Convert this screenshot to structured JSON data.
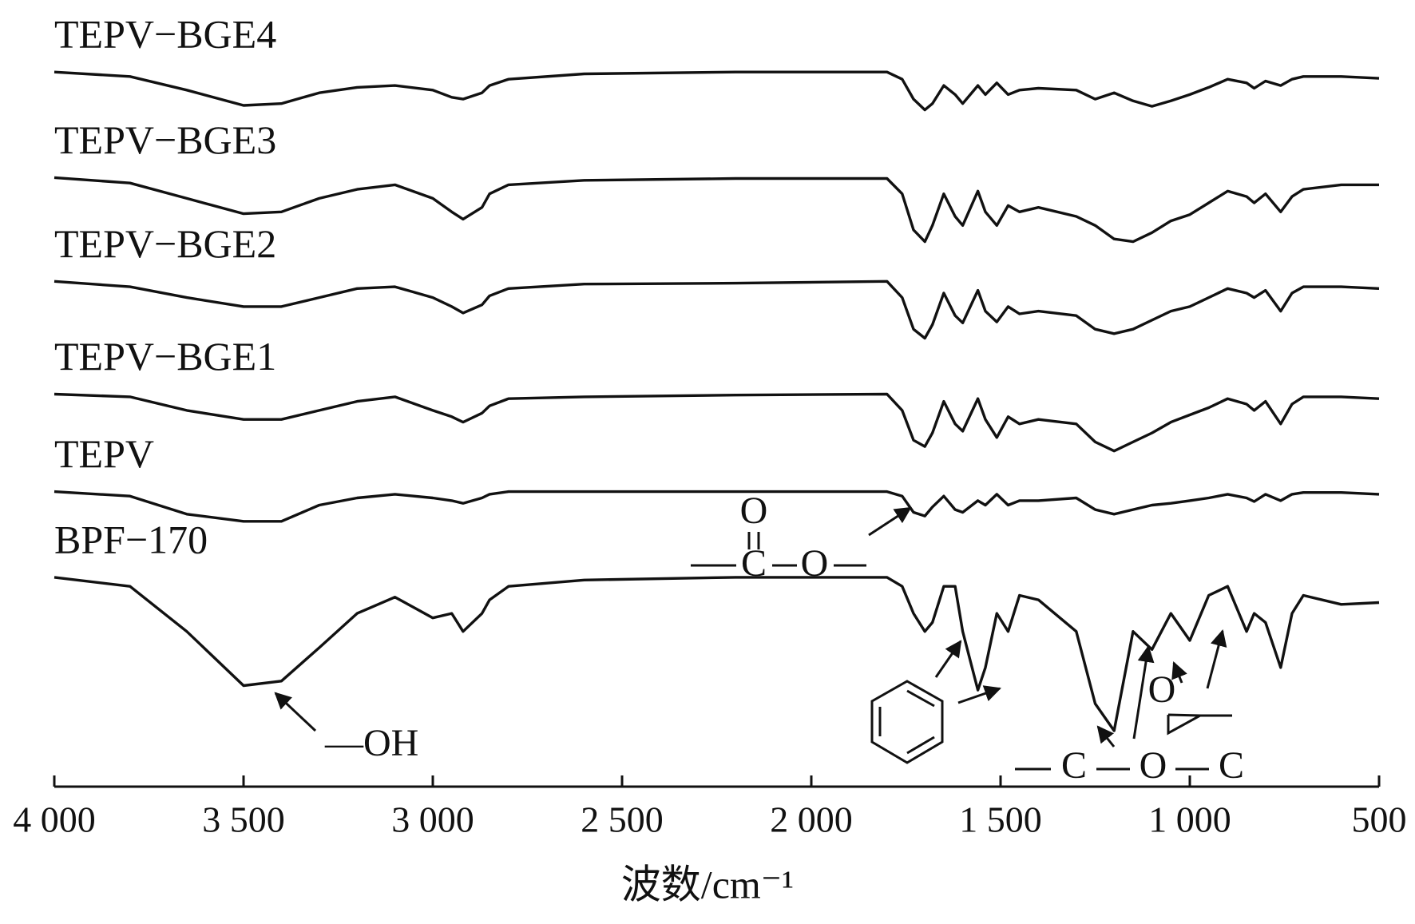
{
  "chart_data": {
    "type": "line",
    "x_label": "波数/cm⁻¹",
    "xlim": [
      4000,
      500
    ],
    "ylim": [
      0,
      832
    ],
    "xticks": [
      {
        "value": 4000,
        "label": "4 000"
      },
      {
        "value": 3500,
        "label": "3 500"
      },
      {
        "value": 3000,
        "label": "3 000"
      },
      {
        "value": 2500,
        "label": "2 500"
      },
      {
        "value": 2000,
        "label": "2 000"
      },
      {
        "value": 1500,
        "label": "1 500"
      },
      {
        "value": 1000,
        "label": "1 000"
      },
      500
    ],
    "x": [
      4000,
      3800,
      3650,
      3500,
      3400,
      3300,
      3200,
      3100,
      3000,
      2950,
      2920,
      2870,
      2850,
      2800,
      2600,
      2200,
      1800,
      1760,
      1730,
      1700,
      1680,
      1650,
      1620,
      1600,
      1560,
      1540,
      1510,
      1480,
      1450,
      1400,
      1300,
      1250,
      1200,
      1150,
      1100,
      1050,
      1000,
      950,
      900,
      850,
      830,
      800,
      760,
      730,
      700,
      600,
      500
    ],
    "series": [
      {
        "name": "TEPV−BGE4",
        "color": "#111111",
        "values": [
          792,
          787,
          772,
          755,
          757,
          769,
          775,
          777,
          772,
          764,
          762,
          769,
          777,
          784,
          790,
          792,
          792,
          784,
          762,
          750,
          757,
          777,
          767,
          757,
          777,
          767,
          780,
          767,
          772,
          774,
          772,
          762,
          769,
          760,
          754,
          760,
          767,
          775,
          784,
          780,
          774,
          782,
          777,
          784,
          787,
          787,
          785
        ]
      },
      {
        "name": "TEPV−BGE3",
        "color": "#111111",
        "values": [
          675,
          669,
          652,
          635,
          637,
          652,
          662,
          667,
          652,
          637,
          629,
          642,
          657,
          667,
          672,
          674,
          674,
          657,
          617,
          604,
          622,
          657,
          632,
          622,
          660,
          637,
          622,
          644,
          637,
          642,
          632,
          622,
          607,
          604,
          614,
          627,
          634,
          647,
          660,
          654,
          647,
          657,
          637,
          654,
          662,
          667,
          667
        ]
      },
      {
        "name": "TEPV−BGE2",
        "color": "#111111",
        "values": [
          560,
          554,
          542,
          532,
          532,
          542,
          552,
          554,
          542,
          532,
          525,
          534,
          544,
          552,
          557,
          558,
          560,
          542,
          507,
          497,
          512,
          547,
          522,
          514,
          550,
          527,
          515,
          532,
          524,
          527,
          522,
          507,
          502,
          507,
          517,
          527,
          532,
          542,
          552,
          547,
          542,
          550,
          527,
          547,
          554,
          554,
          552
        ]
      },
      {
        "name": "TEPV−BGE1",
        "color": "#111111",
        "values": [
          435,
          432,
          417,
          407,
          407,
          417,
          427,
          432,
          417,
          410,
          404,
          414,
          422,
          430,
          432,
          434,
          435,
          417,
          384,
          377,
          392,
          427,
          402,
          394,
          430,
          407,
          387,
          410,
          402,
          407,
          402,
          382,
          372,
          382,
          392,
          404,
          412,
          420,
          430,
          424,
          417,
          427,
          402,
          424,
          432,
          432,
          430
        ]
      },
      {
        "name": "TEPV",
        "color": "#111111",
        "values": [
          327,
          322,
          302,
          294,
          294,
          312,
          320,
          324,
          320,
          317,
          314,
          320,
          324,
          327,
          327,
          327,
          327,
          322,
          304,
          300,
          310,
          322,
          307,
          304,
          317,
          312,
          324,
          312,
          317,
          317,
          320,
          307,
          302,
          307,
          312,
          314,
          317,
          320,
          324,
          320,
          316,
          324,
          317,
          324,
          326,
          326,
          324
        ]
      },
      {
        "name": "BPF−170",
        "color": "#111111",
        "values": [
          232,
          222,
          172,
          112,
          117,
          154,
          192,
          210,
          187,
          192,
          172,
          192,
          207,
          222,
          229,
          232,
          232,
          222,
          192,
          172,
          182,
          222,
          222,
          172,
          107,
          132,
          192,
          172,
          212,
          207,
          172,
          92,
          62,
          172,
          152,
          192,
          162,
          212,
          222,
          172,
          192,
          182,
          132,
          192,
          212,
          202,
          204
        ]
      }
    ],
    "annotations": {
      "hydroxyl": "—OH",
      "ester": [
        "O",
        "C",
        "O"
      ],
      "ether": [
        "C",
        "O",
        "C"
      ],
      "epoxide": "O"
    }
  }
}
